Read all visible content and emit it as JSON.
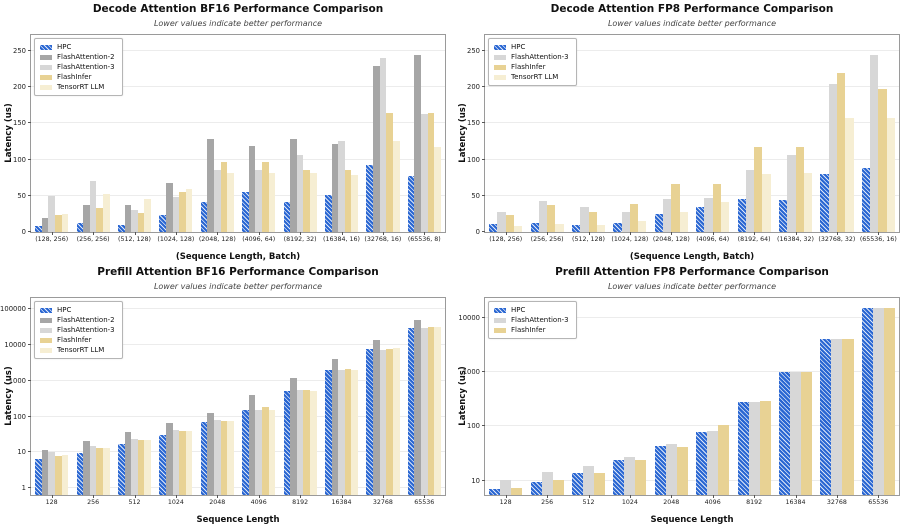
{
  "figure": {
    "background": "#ffffff"
  },
  "chart_data": [
    {
      "type": "bar",
      "title": "Decode Attention BF16 Performance Comparison",
      "subtitle": "Lower values indicate better performance",
      "xlabel": "(Sequence Length, Batch)",
      "ylabel": "Latency (us)",
      "yscale": "linear",
      "ylim": [
        0,
        272
      ],
      "yticks": [
        0,
        50,
        100,
        150,
        200,
        250
      ],
      "grid": true,
      "legend_position": "upper-left",
      "categories": [
        "(128, 256)",
        "(256, 256)",
        "(512, 128)",
        "(1024, 128)",
        "(2048, 128)",
        "(4096, 64)",
        "(8192, 32)",
        "(16384, 16)",
        "(32768, 16)",
        "(65536, 8)"
      ],
      "series": [
        {
          "name": "HPC",
          "color": "#2966d2",
          "hatch": true,
          "values": [
            8,
            13,
            10,
            23,
            42,
            55,
            42,
            51,
            92,
            77
          ]
        },
        {
          "name": "FlashAttention-2",
          "color": "#a6a6a6",
          "hatch": false,
          "values": [
            20,
            37,
            37,
            67,
            129,
            119,
            128,
            122,
            229,
            245
          ]
        },
        {
          "name": "FlashAttention-3",
          "color": "#d7d7d7",
          "hatch": false,
          "values": [
            50,
            71,
            30,
            48,
            85,
            86,
            106,
            125,
            240,
            163
          ]
        },
        {
          "name": "FlashInfer",
          "color": "#e8d294",
          "hatch": false,
          "values": [
            24,
            33,
            26,
            55,
            96,
            96,
            85,
            85,
            165,
            165
          ]
        },
        {
          "name": "TensorRT LLM",
          "color": "#f6eed3",
          "hatch": false,
          "values": [
            25,
            52,
            45,
            60,
            82,
            81,
            82,
            79,
            125,
            118
          ]
        }
      ]
    },
    {
      "type": "bar",
      "title": "Decode Attention FP8 Performance Comparison",
      "subtitle": "Lower values indicate better performance",
      "xlabel": "(Sequence Length, Batch)",
      "ylabel": "Latency (us)",
      "yscale": "linear",
      "ylim": [
        0,
        272
      ],
      "yticks": [
        0,
        50,
        100,
        150,
        200,
        250
      ],
      "grid": true,
      "legend_position": "upper-left",
      "categories": [
        "(128, 256)",
        "(256, 256)",
        "(512, 128)",
        "(1024, 128)",
        "(2048, 128)",
        "(4096, 64)",
        "(8192, 64)",
        "(16384, 32)",
        "(32768, 32)",
        "(65536, 16)"
      ],
      "series": [
        {
          "name": "HPC",
          "color": "#2966d2",
          "hatch": true,
          "values": [
            11,
            13,
            10,
            13,
            25,
            35,
            46,
            44,
            80,
            88
          ]
        },
        {
          "name": "FlashAttention-3",
          "color": "#d7d7d7",
          "hatch": false,
          "values": [
            27,
            43,
            35,
            28,
            45,
            47,
            85,
            107,
            205,
            245
          ]
        },
        {
          "name": "FlashInfer",
          "color": "#e8d294",
          "hatch": false,
          "values": [
            24,
            37,
            27,
            39,
            66,
            66,
            117,
            117,
            220,
            197
          ]
        },
        {
          "name": "TensorRT LLM",
          "color": "#f6eed3",
          "hatch": false,
          "values": [
            8,
            11,
            9,
            15,
            28,
            41,
            80,
            82,
            158,
            158
          ]
        }
      ]
    },
    {
      "type": "bar",
      "title": "Prefill Attention BF16 Performance Comparison",
      "subtitle": "Lower values indicate better performance",
      "xlabel": "Sequence Length",
      "ylabel": "Latency (us)",
      "yscale": "log",
      "ylim": [
        0.65,
        200000
      ],
      "yticks": [
        1,
        10,
        100,
        1000,
        10000,
        100000
      ],
      "grid": true,
      "legend_position": "upper-left",
      "categories": [
        "128",
        "256",
        "512",
        "1024",
        "2048",
        "4096",
        "8192",
        "16384",
        "32768",
        "65536"
      ],
      "series": [
        {
          "name": "HPC",
          "color": "#2966d2",
          "hatch": true,
          "values": [
            6.5,
            9.5,
            17,
            31,
            70,
            148,
            520,
            2000,
            7500,
            30000
          ]
        },
        {
          "name": "FlashAttention-2",
          "color": "#a6a6a6",
          "hatch": false,
          "values": [
            12,
            21,
            36,
            67,
            125,
            390,
            1150,
            4000,
            13500,
            50000
          ]
        },
        {
          "name": "FlashAttention-3",
          "color": "#d7d7d7",
          "hatch": false,
          "values": [
            10,
            15,
            24,
            42,
            78,
            148,
            560,
            2000,
            7200,
            30000
          ]
        },
        {
          "name": "FlashInfer",
          "color": "#e8d294",
          "hatch": false,
          "values": [
            8,
            13,
            22,
            40,
            77,
            190,
            540,
            2050,
            7800,
            31000
          ]
        },
        {
          "name": "TensorRT LLM",
          "color": "#f6eed3",
          "hatch": false,
          "values": [
            8.5,
            13,
            22,
            39,
            75,
            148,
            520,
            2000,
            8000,
            31000
          ]
        }
      ]
    },
    {
      "type": "bar",
      "title": "Prefill Attention FP8 Performance Comparison",
      "subtitle": "Lower values indicate better performance",
      "xlabel": "Sequence Length",
      "ylabel": "Latency (us)",
      "yscale": "log",
      "ylim": [
        5.5,
        23000
      ],
      "yticks": [
        10,
        100,
        1000,
        10000
      ],
      "grid": true,
      "legend_position": "upper-left",
      "categories": [
        "128",
        "256",
        "512",
        "1024",
        "2048",
        "4096",
        "8192",
        "16384",
        "32768",
        "65536"
      ],
      "series": [
        {
          "name": "HPC",
          "color": "#2966d2",
          "hatch": true,
          "values": [
            7,
            9.5,
            14,
            24,
            43,
            80,
            280,
            1000,
            4000,
            15000
          ]
        },
        {
          "name": "FlashAttention-3",
          "color": "#d7d7d7",
          "hatch": false,
          "values": [
            10.5,
            14.5,
            19,
            27,
            47,
            83,
            280,
            1000,
            4000,
            15000
          ]
        },
        {
          "name": "FlashInfer",
          "color": "#e8d294",
          "hatch": false,
          "values": [
            7.5,
            10.5,
            14,
            24,
            42,
            105,
            290,
            1020,
            4000,
            15000
          ]
        }
      ]
    }
  ]
}
